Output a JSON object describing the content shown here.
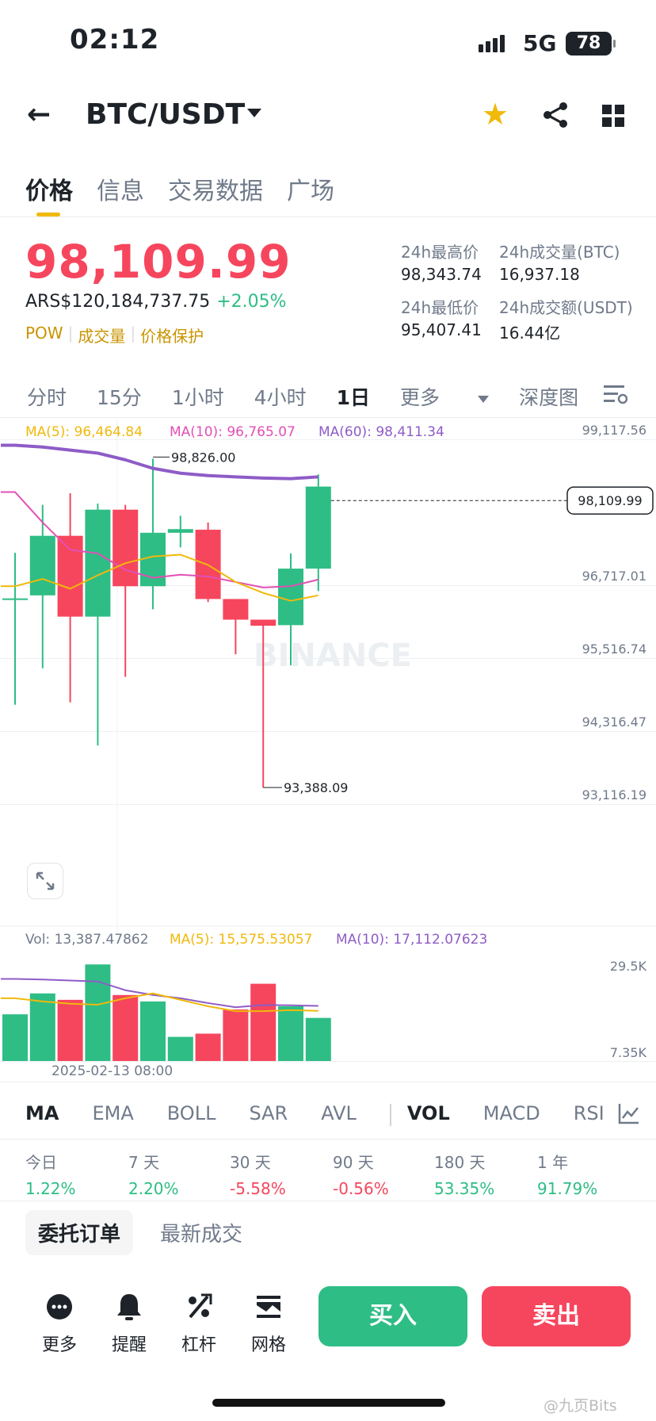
{
  "status": {
    "time": "02:12",
    "network": "5G",
    "battery": "78"
  },
  "header": {
    "pair": "BTC/USDT",
    "back_icon": "arrow-left-icon",
    "fav_icon": "star-icon",
    "share_icon": "share-icon",
    "grid_icon": "grid-icon",
    "fav_color": "#f0b90b"
  },
  "tabs": [
    "价格",
    "信息",
    "交易数据",
    "广场"
  ],
  "ticker": {
    "price": "98,109.99",
    "fiat": "ARS$120,184,737.75",
    "change": "+2.05%",
    "tags": [
      "POW",
      "成交量",
      "价格保护"
    ],
    "stats": [
      {
        "label": "24h最高价",
        "value": "98,343.74"
      },
      {
        "label": "24h成交量(BTC)",
        "value": "16,937.18"
      },
      {
        "label": "24h最低价",
        "value": "95,407.41"
      },
      {
        "label": "24h成交额(USDT)",
        "value": "16.44亿"
      }
    ]
  },
  "periods": [
    "分时",
    "15分",
    "1小时",
    "4小时",
    "1日",
    "更多",
    "深度图"
  ],
  "chart_data": {
    "type": "candlestick",
    "ma_labels": {
      "ma5": "MA(5): 96,464.84",
      "ma10": "MA(10): 96,765.07",
      "ma60": "MA(60): 98,411.34"
    },
    "y_ticks": [
      "99,117.56",
      "96,717.01",
      "95,516.74",
      "94,316.47",
      "93,116.19"
    ],
    "y_tick_values": [
      99117.56,
      96717.01,
      95516.74,
      94316.47,
      93116.19
    ],
    "ylim": [
      93116.19,
      99117.56
    ],
    "current_price": "98,109.99",
    "current_price_value": 98109.99,
    "high_label": "98,826.00",
    "high_value": 98826.0,
    "low_label": "93,388.09",
    "low_value": 93388.09,
    "watermark": "BINANCE",
    "candles": [
      {
        "o": 96500,
        "c": 96500,
        "h": 97250,
        "l": 94750
      },
      {
        "o": 96550,
        "c": 97530,
        "h": 98040,
        "l": 95350
      },
      {
        "o": 97530,
        "c": 96200,
        "h": 98230,
        "l": 94790
      },
      {
        "o": 96200,
        "c": 97960,
        "h": 98060,
        "l": 94080
      },
      {
        "o": 97960,
        "c": 96700,
        "h": 98040,
        "l": 95210
      },
      {
        "o": 96700,
        "c": 97580,
        "h": 98800,
        "l": 96320
      },
      {
        "o": 97580,
        "c": 97640,
        "h": 97860,
        "l": 97340
      },
      {
        "o": 97630,
        "c": 96490,
        "h": 97750,
        "l": 96440
      },
      {
        "o": 96490,
        "c": 96150,
        "h": 96430,
        "l": 95580
      },
      {
        "o": 96150,
        "c": 96050,
        "h": 96130,
        "l": 93388.09
      },
      {
        "o": 96060,
        "c": 96990,
        "h": 97240,
        "l": 95400
      },
      {
        "o": 96990,
        "c": 98340,
        "h": 98540,
        "l": 96620
      }
    ],
    "ma5": [
      96700,
      96820,
      96660,
      96880,
      97080,
      97190,
      97220,
      97050,
      96770,
      96590,
      96460,
      96550
    ],
    "ma10": [
      98250,
      97750,
      97300,
      97240,
      96970,
      96840,
      96890,
      96860,
      96770,
      96680,
      96700,
      96810
    ],
    "ma60": [
      99020,
      98990,
      98940,
      98890,
      98780,
      98640,
      98560,
      98520,
      98500,
      98480,
      98470,
      98500
    ],
    "volume": {
      "label": "Vol: 13,387.47862",
      "ma5_label": "MA(5): 15,575.53057",
      "ma10_label": "MA(10): 17,112.07623",
      "y_ticks": [
        "29.5K",
        "7.35K"
      ],
      "ylim": [
        0,
        34000
      ],
      "values": [
        14500,
        21000,
        19000,
        30000,
        20500,
        18500,
        7500,
        8500,
        16000,
        24000,
        17000,
        13387.47862
      ],
      "ma5": [
        19500,
        18500,
        17800,
        17500,
        19500,
        21000,
        19000,
        17000,
        15500,
        15500,
        15800,
        15575.53
      ],
      "ma10": [
        25500,
        25300,
        25000,
        24700,
        22000,
        20500,
        19500,
        18000,
        16700,
        17400,
        17300,
        17112.08
      ],
      "date_label": "2025-02-13 08:00"
    }
  },
  "indicators": [
    "MA",
    "EMA",
    "BOLL",
    "SAR",
    "AVL",
    "VOL",
    "MACD",
    "RSI"
  ],
  "performance": [
    {
      "label": "今日",
      "value": "1.22%"
    },
    {
      "label": "7 天",
      "value": "2.20%"
    },
    {
      "label": "30 天",
      "value": "-5.58%"
    },
    {
      "label": "90 天",
      "value": "-0.56%"
    },
    {
      "label": "180 天",
      "value": "53.35%"
    },
    {
      "label": "1 年",
      "value": "91.79%"
    }
  ],
  "order_tabs": [
    "委托订单",
    "最新成交"
  ],
  "bottom": {
    "items": [
      {
        "label": "更多",
        "icon": "more-icon"
      },
      {
        "label": "提醒",
        "icon": "bell-icon"
      },
      {
        "label": "杠杆",
        "icon": "percent-icon"
      },
      {
        "label": "网格",
        "icon": "grid-chart-icon"
      }
    ],
    "buy": "买入",
    "sell": "卖出"
  },
  "watermark_footer": "@九页Bits"
}
